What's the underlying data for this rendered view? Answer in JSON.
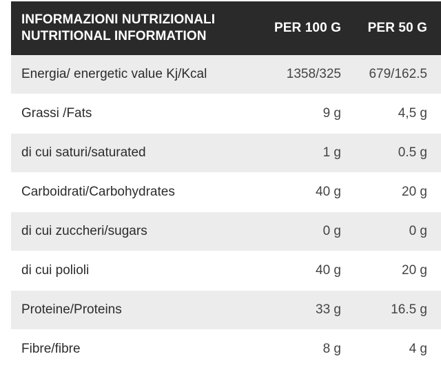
{
  "header": {
    "title_it": "INFORMAZIONI NUTRIZIONALI",
    "title_en": "NUTRITIONAL INFORMATION",
    "col_per_100g": "PER 100 G",
    "col_per_50g": "PER 50 G"
  },
  "rows": [
    {
      "label": "Energia/ energetic value Kj/Kcal",
      "per_100g": "1358/325",
      "per_50g": "679/162.5"
    },
    {
      "label": "Grassi /Fats",
      "per_100g": "9 g",
      "per_50g": "4,5 g"
    },
    {
      "label": "di cui saturi/saturated",
      "per_100g": "1 g",
      "per_50g": "0.5 g"
    },
    {
      "label": "Carboidrati/Carbohydrates",
      "per_100g": "40 g",
      "per_50g": "20 g"
    },
    {
      "label": "di cui zuccheri/sugars",
      "per_100g": "0 g",
      "per_50g": "0 g"
    },
    {
      "label": "di cui polioli",
      "per_100g": "40 g",
      "per_50g": "20 g"
    },
    {
      "label": "Proteine/Proteins",
      "per_100g": "33 g",
      "per_50g": "16.5 g"
    },
    {
      "label": "Fibre/fibre",
      "per_100g": "8 g",
      "per_50g": "4 g"
    }
  ],
  "colors": {
    "header_bg": "#2a2a2a",
    "header_text": "#ffffff",
    "row_shaded": "#ececec",
    "row_plain": "#ffffff",
    "body_text": "#2c2c2c"
  }
}
